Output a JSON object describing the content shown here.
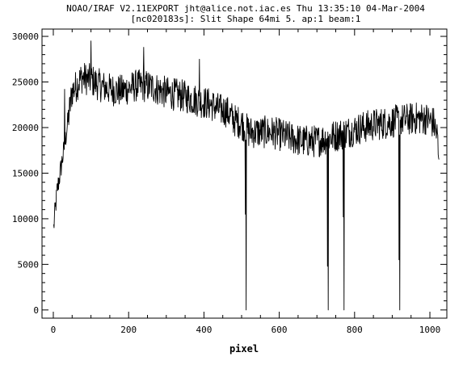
{
  "chart_data": {
    "type": "line",
    "title_line1": "NOAO/IRAF V2.11EXPORT jht@alice.not.iac.es Thu 13:35:10 04-Mar-2004",
    "title_line2": "[nc020183s]: Slit Shape 64mi 5. ap:1 beam:1",
    "xlabel": "pixel",
    "ylabel": "",
    "xlim": [
      -30,
      1045
    ],
    "ylim": [
      -900,
      30800
    ],
    "x_ticks": [
      0,
      200,
      400,
      600,
      800,
      1000
    ],
    "x_tick_labels": [
      "0",
      "200",
      "400",
      "600",
      "800",
      "1000"
    ],
    "y_ticks": [
      0,
      5000,
      10000,
      15000,
      20000,
      25000,
      30000
    ],
    "y_tick_labels": [
      "0",
      "5000",
      "10000",
      "15000",
      "20000",
      "25000",
      "30000"
    ],
    "x_minor_step": 50,
    "y_minor_step": 1000,
    "grid": false,
    "series": [
      {
        "name": "",
        "color": "#000000",
        "x_start": 1,
        "x_step": 1,
        "profile_knots": [
          [
            1,
            9000
          ],
          [
            4,
            10500
          ],
          [
            10,
            13000
          ],
          [
            20,
            15500
          ],
          [
            28,
            17500
          ],
          [
            40,
            21000
          ],
          [
            50,
            24000
          ],
          [
            60,
            24500
          ],
          [
            75,
            25500
          ],
          [
            100,
            25200
          ],
          [
            130,
            24500
          ],
          [
            150,
            24200
          ],
          [
            180,
            24000
          ],
          [
            220,
            24600
          ],
          [
            260,
            24500
          ],
          [
            300,
            23800
          ],
          [
            340,
            23500
          ],
          [
            380,
            23000
          ],
          [
            420,
            22500
          ],
          [
            440,
            22000
          ],
          [
            460,
            21800
          ],
          [
            480,
            20800
          ],
          [
            500,
            20500
          ],
          [
            520,
            19500
          ],
          [
            540,
            19500
          ],
          [
            580,
            19500
          ],
          [
            620,
            19000
          ],
          [
            660,
            18500
          ],
          [
            700,
            18500
          ],
          [
            740,
            19000
          ],
          [
            780,
            19500
          ],
          [
            820,
            20000
          ],
          [
            850,
            20300
          ],
          [
            880,
            20500
          ],
          [
            920,
            20800
          ],
          [
            960,
            21000
          ],
          [
            990,
            21000
          ],
          [
            1010,
            20500
          ],
          [
            1020,
            19000
          ],
          [
            1024,
            15500
          ]
        ],
        "noise_amplitude": 1800,
        "spikes": [
          {
            "x": 30,
            "y": 24200
          },
          {
            "x": 100,
            "y": 29500
          },
          {
            "x": 240,
            "y": 28800
          },
          {
            "x": 388,
            "y": 27500
          }
        ],
        "dips": [
          {
            "x": 510,
            "y": 10500
          },
          {
            "x": 512,
            "y": 0
          },
          {
            "x": 728,
            "y": 4800
          },
          {
            "x": 730,
            "y": 0
          },
          {
            "x": 770,
            "y": 10200
          },
          {
            "x": 772,
            "y": 0
          },
          {
            "x": 918,
            "y": 5500
          },
          {
            "x": 920,
            "y": 0
          }
        ]
      }
    ]
  }
}
